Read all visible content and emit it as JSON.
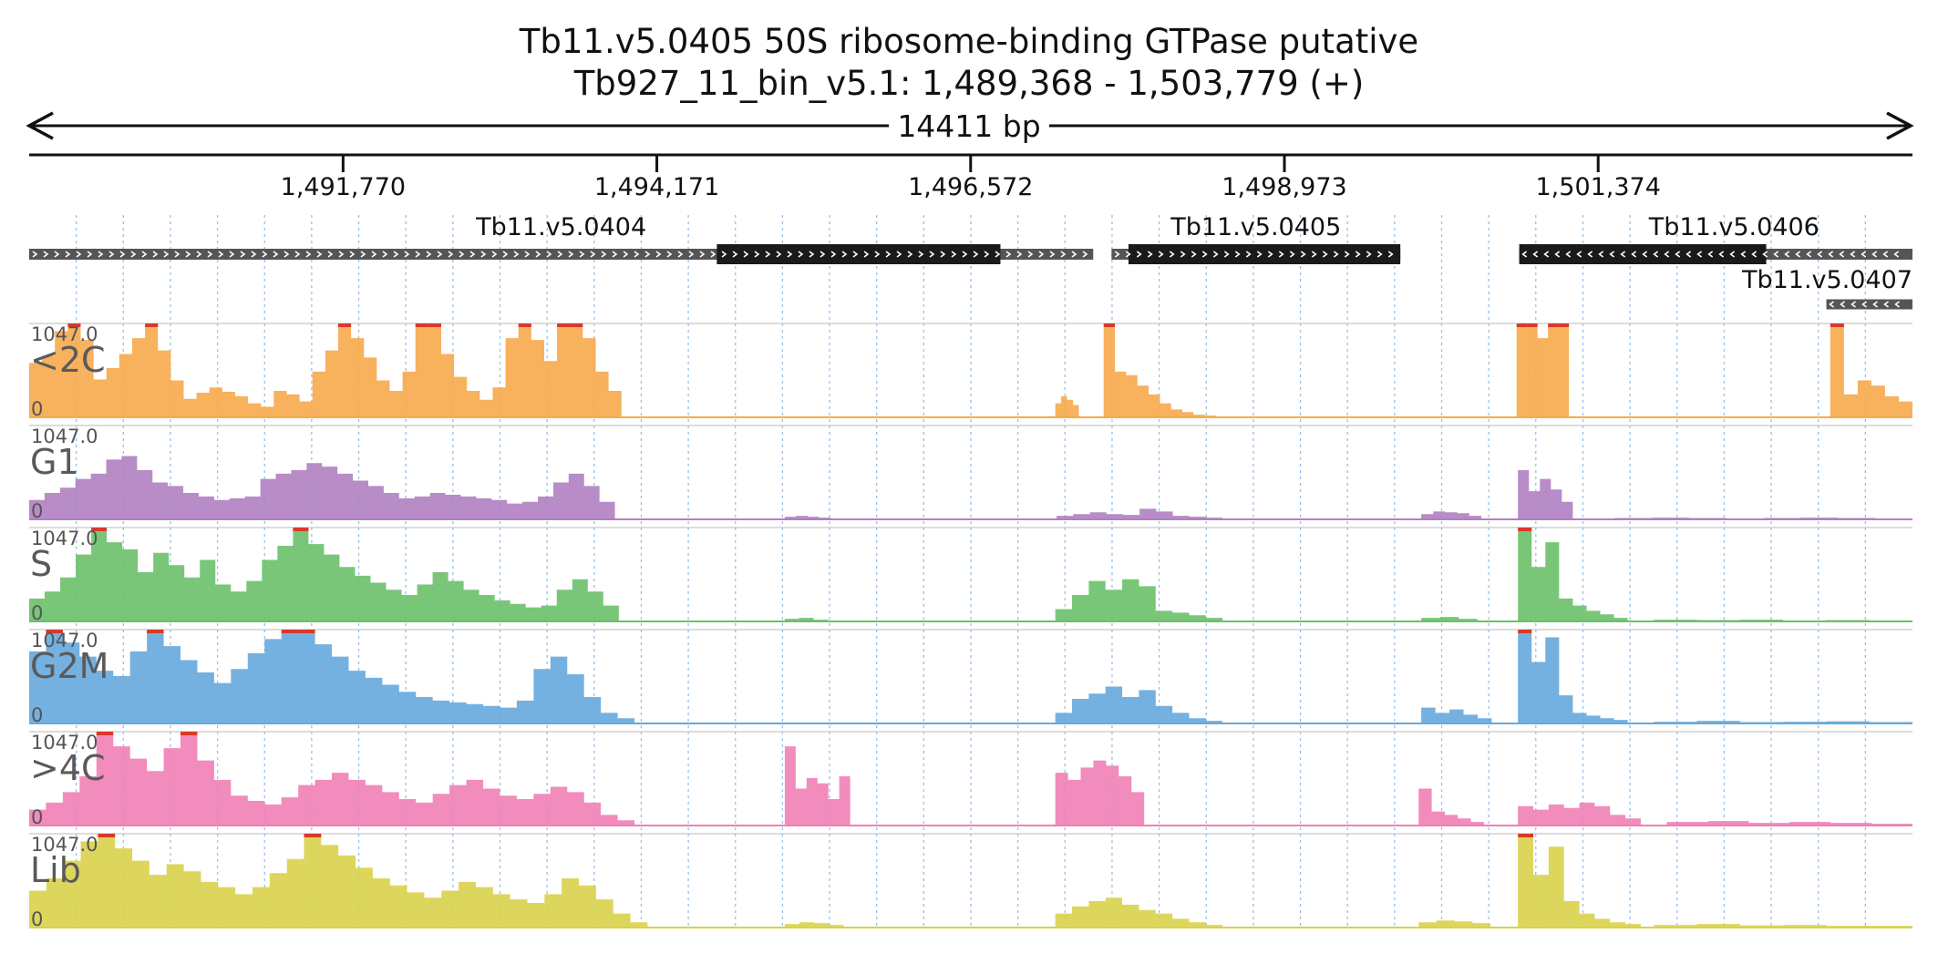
{
  "title": {
    "line1": "Tb11.v5.0405  50S ribosome-binding GTPase  putative",
    "line2": "Tb927_11_bin_v5.1: 1,489,368 - 1,503,779 (+)"
  },
  "span_label": "14411 bp",
  "ruler_ticks": [
    {
      "pos": 1491770,
      "label": "1,491,770"
    },
    {
      "pos": 1494171,
      "label": "1,494,171"
    },
    {
      "pos": 1496572,
      "label": "1,496,572"
    },
    {
      "pos": 1498973,
      "label": "1,498,973"
    },
    {
      "pos": 1501374,
      "label": "1,501,374"
    }
  ],
  "colors": {
    "<2C": "#f7a94a",
    "G1": "#b07fc0",
    "S": "#6cc06a",
    "G2M": "#66a8dd",
    ">4C": "#f07fb5",
    "Lib": "#d9d24a",
    "clip": "#d8392b",
    "gene_utr": "#555555",
    "gene_cds": "#1a1a1a",
    "grid": "#7fb1e0"
  },
  "genes": [
    {
      "name": "Tb11.v5.0404",
      "strand": "+",
      "start": 1489368,
      "end": 1497510,
      "cds_start": 1494630,
      "cds_end": 1496800,
      "row": 0
    },
    {
      "name": "Tb11.v5.0405",
      "strand": "+",
      "start": 1497650,
      "end": 1499860,
      "cds_start": 1497780,
      "cds_end": 1499860,
      "row": 0
    },
    {
      "name": "Tb11.v5.0406",
      "strand": "-",
      "start": 1500770,
      "end": 1503779,
      "cds_start": 1500770,
      "cds_end": 1502660,
      "row": 0
    },
    {
      "name": "Tb11.v5.0407",
      "strand": "-",
      "start": 1503120,
      "end": 1503779,
      "cds_start": null,
      "cds_end": null,
      "row": 1
    }
  ],
  "chart_data": {
    "type": "area",
    "x_range": [
      1489368,
      1503779
    ],
    "x_unit": "bp",
    "y_range": [
      0,
      1047.0
    ],
    "y_max_label": "1047.0",
    "y_zero_label": "0",
    "grid": true,
    "tracks": [
      {
        "name": "<2C",
        "segments": [
          {
            "start": 1489368,
            "end": 1493900,
            "values": [
              620,
              700,
              980,
              1047,
              880,
              430,
              560,
              720,
              900,
              1047,
              760,
              420,
              210,
              280,
              340,
              290,
              240,
              160,
              120,
              300,
              260,
              180,
              520,
              760,
              1047,
              900,
              680,
              420,
              300,
              520,
              1047,
              1047,
              720,
              460,
              300,
              200,
              340,
              900,
              1047,
              880,
              640,
              1047,
              1047,
              900,
              520,
              300
            ]
          },
          {
            "start": 1497220,
            "end": 1497400,
            "values": [
              160,
              240,
              200,
              140
            ]
          },
          {
            "start": 1497590,
            "end": 1498450,
            "values": [
              1047,
              520,
              480,
              360,
              260,
              160,
              90,
              60,
              30,
              20
            ]
          },
          {
            "start": 1500750,
            "end": 1501150,
            "values": [
              1047,
              1047,
              900,
              1047,
              1047
            ]
          },
          {
            "start": 1503150,
            "end": 1503779,
            "values": [
              1047,
              260,
              420,
              360,
              240,
              180
            ]
          }
        ]
      },
      {
        "name": "G1",
        "segments": [
          {
            "start": 1489368,
            "end": 1493850,
            "values": [
              220,
              300,
              360,
              460,
              520,
              680,
              720,
              560,
              420,
              380,
              300,
              260,
              220,
              240,
              260,
              460,
              520,
              560,
              640,
              600,
              520,
              440,
              380,
              300,
              240,
              260,
              300,
              280,
              260,
              240,
              220,
              180,
              200,
              260,
              420,
              520,
              380,
              200
            ]
          },
          {
            "start": 1495150,
            "end": 1495500,
            "values": [
              30,
              40,
              30,
              20
            ]
          },
          {
            "start": 1497230,
            "end": 1498500,
            "values": [
              40,
              60,
              80,
              60,
              50,
              120,
              90,
              40,
              30,
              20
            ]
          },
          {
            "start": 1500020,
            "end": 1500480,
            "values": [
              60,
              90,
              80,
              70,
              40
            ]
          },
          {
            "start": 1500760,
            "end": 1501180,
            "values": [
              560,
              320,
              460,
              340,
              200
            ]
          },
          {
            "start": 1501500,
            "end": 1503779,
            "values": [
              15,
              20,
              15,
              10,
              15,
              20,
              15,
              10
            ]
          }
        ]
      },
      {
        "name": "S",
        "segments": [
          {
            "start": 1489368,
            "end": 1493880,
            "values": [
              260,
              340,
              500,
              760,
              1047,
              900,
              820,
              560,
              780,
              640,
              500,
              700,
              420,
              340,
              460,
              700,
              860,
              1047,
              880,
              760,
              620,
              520,
              440,
              360,
              300,
              420,
              560,
              460,
              360,
              300,
              240,
              200,
              160,
              180,
              360,
              480,
              340,
              180
            ]
          },
          {
            "start": 1495150,
            "end": 1495480,
            "values": [
              30,
              40,
              20
            ]
          },
          {
            "start": 1497220,
            "end": 1498500,
            "values": [
              140,
              300,
              460,
              360,
              480,
              400,
              120,
              100,
              70,
              40
            ]
          },
          {
            "start": 1500020,
            "end": 1500450,
            "values": [
              40,
              50,
              30
            ]
          },
          {
            "start": 1500760,
            "end": 1501600,
            "values": [
              1047,
              620,
              900,
              260,
              180,
              120,
              80,
              40
            ]
          },
          {
            "start": 1501800,
            "end": 1503779,
            "values": [
              20,
              15,
              20,
              10,
              15,
              10
            ]
          }
        ]
      },
      {
        "name": "G2M",
        "segments": [
          {
            "start": 1489368,
            "end": 1494000,
            "values": [
              820,
              1047,
              920,
              760,
              600,
              540,
              820,
              1047,
              880,
              720,
              580,
              460,
              620,
              800,
              960,
              1047,
              1047,
              900,
              760,
              600,
              520,
              440,
              360,
              300,
              260,
              240,
              220,
              200,
              180,
              260,
              620,
              760,
              560,
              300,
              120,
              60
            ]
          },
          {
            "start": 1497220,
            "end": 1498500,
            "values": [
              120,
              280,
              340,
              420,
              300,
              380,
              200,
              120,
              60,
              30
            ]
          },
          {
            "start": 1500020,
            "end": 1500560,
            "values": [
              180,
              120,
              160,
              100,
              60
            ]
          },
          {
            "start": 1500760,
            "end": 1501600,
            "values": [
              1047,
              700,
              980,
              320,
              120,
              90,
              60,
              40
            ]
          },
          {
            "start": 1501800,
            "end": 1503779,
            "values": [
              20,
              30,
              15,
              20,
              25,
              15
            ]
          }
        ]
      },
      {
        "name": ">4C",
        "segments": [
          {
            "start": 1489368,
            "end": 1494000,
            "values": [
              180,
              260,
              380,
              560,
              1047,
              900,
              760,
              620,
              880,
              1047,
              740,
              520,
              340,
              280,
              240,
              320,
              460,
              520,
              600,
              520,
              460,
              380,
              300,
              260,
              360,
              460,
              520,
              420,
              340,
              300,
              360,
              440,
              380,
              260,
              120,
              60
            ]
          },
          {
            "start": 1495150,
            "end": 1495650,
            "values": [
              900,
              420,
              540,
              480,
              300,
              560
            ]
          },
          {
            "start": 1497220,
            "end": 1497900,
            "values": [
              600,
              520,
              660,
              740,
              680,
              560,
              380
            ]
          },
          {
            "start": 1500000,
            "end": 1500500,
            "values": [
              420,
              160,
              120,
              80,
              40
            ]
          },
          {
            "start": 1500760,
            "end": 1501700,
            "values": [
              220,
              180,
              240,
              200,
              260,
              220,
              120,
              80
            ]
          },
          {
            "start": 1501900,
            "end": 1503779,
            "values": [
              40,
              50,
              30,
              40,
              30,
              20
            ]
          }
        ]
      },
      {
        "name": "Lib",
        "segments": [
          {
            "start": 1489368,
            "end": 1494100,
            "values": [
              420,
              560,
              760,
              980,
              1047,
              900,
              760,
              600,
              720,
              640,
              520,
              460,
              380,
              460,
              620,
              780,
              1047,
              940,
              820,
              680,
              560,
              480,
              400,
              340,
              420,
              520,
              460,
              380,
              320,
              280,
              380,
              560,
              480,
              320,
              160,
              60
            ]
          },
          {
            "start": 1495150,
            "end": 1495600,
            "values": [
              40,
              60,
              50,
              30
            ]
          },
          {
            "start": 1497220,
            "end": 1498500,
            "values": [
              160,
              240,
              300,
              340,
              260,
              200,
              160,
              100,
              60,
              30
            ]
          },
          {
            "start": 1500000,
            "end": 1500550,
            "values": [
              60,
              80,
              70,
              50
            ]
          },
          {
            "start": 1500760,
            "end": 1501700,
            "values": [
              1047,
              600,
              920,
              300,
              160,
              100,
              60,
              40
            ]
          },
          {
            "start": 1501800,
            "end": 1503779,
            "values": [
              30,
              40,
              25,
              30,
              20,
              20
            ]
          }
        ]
      }
    ]
  }
}
